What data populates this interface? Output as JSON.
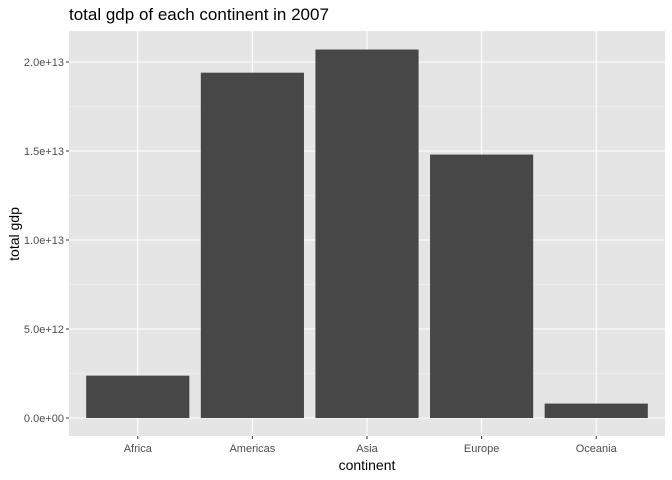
{
  "chart_data": {
    "type": "bar",
    "title": "total gdp of each continent in 2007",
    "xlabel": "continent",
    "ylabel": "total gdp",
    "categories": [
      "Africa",
      "Americas",
      "Asia",
      "Europe",
      "Oceania"
    ],
    "values": [
      2380000000000.0,
      19400000000000.0,
      20700000000000.0,
      14800000000000.0,
      810000000000.0
    ],
    "ylim": [
      0,
      21500000000000.0
    ],
    "yticks": [
      0,
      5000000000000.0,
      10000000000000.0,
      15000000000000.0,
      20000000000000.0
    ],
    "ytick_labels": [
      "0.0e+00",
      "5.0e+12",
      "1.0e+13",
      "1.5e+13",
      "2.0e+13"
    ],
    "grid": true,
    "colors": {
      "panel": "#e5e5e5",
      "grid_major": "#ffffff",
      "bar": "#474747"
    }
  }
}
